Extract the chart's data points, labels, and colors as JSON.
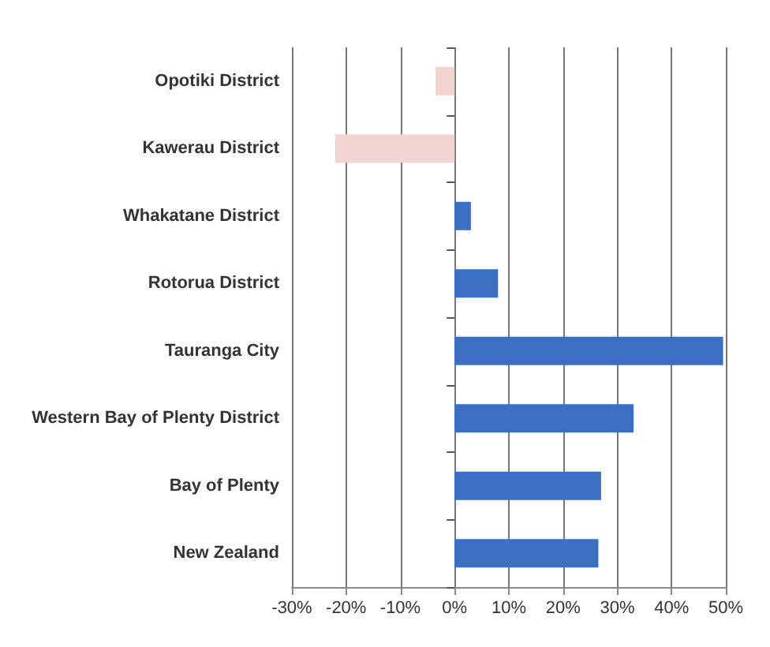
{
  "chart_data": {
    "type": "bar",
    "orientation": "horizontal",
    "categories": [
      "Opotiki District",
      "Kawerau District",
      "Whakatane District",
      "Rotorua District",
      "Tauranga City",
      "Western Bay of Plenty District",
      "Bay of Plenty",
      "New Zealand"
    ],
    "values": [
      -3.5,
      -22,
      3,
      8,
      49.5,
      33,
      27,
      26.5
    ],
    "colors": [
      "#f2d3cf",
      "#f2d3cf",
      "#3a6fc4",
      "#3a6fc4",
      "#3a6fc4",
      "#3a6fc4",
      "#3a6fc4",
      "#3a6fc4"
    ],
    "xlim": [
      -30,
      50
    ],
    "xticks": [
      {
        "value": -30,
        "label": "-30%"
      },
      {
        "value": -20,
        "label": "-20%"
      },
      {
        "value": -10,
        "label": "-10%"
      },
      {
        "value": 0,
        "label": "0%"
      },
      {
        "value": 10,
        "label": "10%"
      },
      {
        "value": 20,
        "label": "20%"
      },
      {
        "value": 30,
        "label": "30%"
      },
      {
        "value": 40,
        "label": "40%"
      },
      {
        "value": 50,
        "label": "50%"
      }
    ],
    "grid": "x"
  }
}
